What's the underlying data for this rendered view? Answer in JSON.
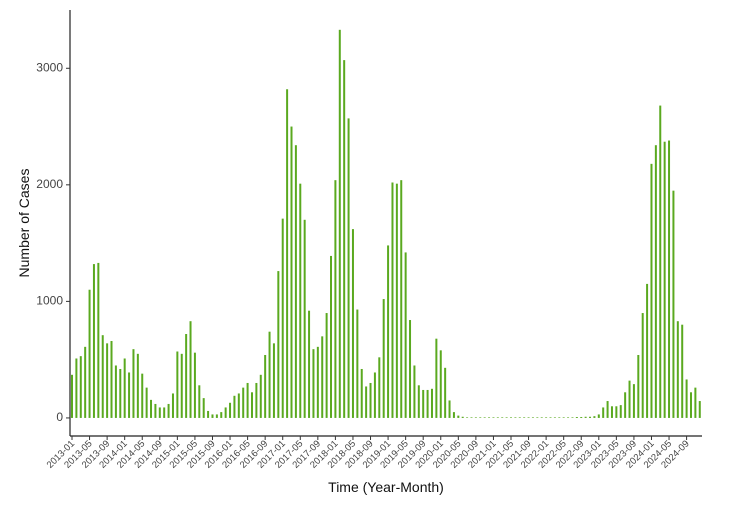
{
  "chart_data": {
    "type": "bar",
    "x_label": "Time (Year-Month)",
    "y_label": "Number of Cases",
    "color": "#5aa91f",
    "categories": [
      "2013-01",
      null,
      null,
      null,
      "2013-05",
      null,
      null,
      null,
      "2013-09",
      null,
      null,
      null,
      "2014-01",
      null,
      null,
      null,
      "2014-05",
      null,
      null,
      null,
      "2014-09",
      null,
      null,
      null,
      "2015-01",
      null,
      null,
      null,
      "2015-05",
      null,
      null,
      null,
      "2015-09",
      null,
      null,
      null,
      "2016-01",
      null,
      null,
      null,
      "2016-05",
      null,
      null,
      null,
      "2016-09",
      null,
      null,
      null,
      "2017-01",
      null,
      null,
      null,
      "2017-05",
      null,
      null,
      null,
      "2017-09",
      null,
      null,
      null,
      "2018-01",
      null,
      null,
      null,
      "2018-05",
      null,
      null,
      null,
      "2018-09",
      null,
      null,
      null,
      "2019-01",
      null,
      null,
      null,
      "2019-05",
      null,
      null,
      null,
      "2019-09",
      null,
      null,
      null,
      "2020-01",
      null,
      null,
      null,
      "2020-05",
      null,
      null,
      null,
      "2020-09",
      null,
      null,
      null,
      "2021-01",
      null,
      null,
      null,
      "2021-05",
      null,
      null,
      null,
      "2021-09",
      null,
      null,
      null,
      "2022-01",
      null,
      null,
      null,
      "2022-05",
      null,
      null,
      null,
      "2022-09",
      null,
      null,
      null,
      "2023-01",
      null,
      null,
      null,
      "2023-05",
      null,
      null,
      null,
      "2023-09",
      null,
      null,
      null,
      "2024-01",
      null,
      null,
      null,
      "2024-05",
      null,
      null,
      null,
      "2024-09",
      null,
      null,
      null
    ],
    "values": [
      370,
      510,
      530,
      610,
      1100,
      1320,
      1330,
      710,
      640,
      660,
      450,
      420,
      510,
      390,
      590,
      550,
      380,
      260,
      155,
      120,
      90,
      90,
      120,
      210,
      570,
      550,
      720,
      830,
      560,
      280,
      170,
      60,
      30,
      30,
      50,
      90,
      130,
      190,
      210,
      260,
      300,
      220,
      300,
      370,
      540,
      740,
      640,
      1260,
      1710,
      2820,
      2500,
      2340,
      2010,
      1700,
      920,
      590,
      610,
      700,
      900,
      1390,
      2040,
      3330,
      3070,
      2570,
      1620,
      930,
      420,
      270,
      300,
      390,
      520,
      1020,
      1480,
      2020,
      2010,
      2040,
      1420,
      840,
      450,
      280,
      240,
      240,
      250,
      680,
      580,
      430,
      150,
      50,
      20,
      10,
      5,
      5,
      5,
      5,
      5,
      5,
      5,
      5,
      5,
      5,
      5,
      5,
      5,
      5,
      5,
      5,
      5,
      5,
      5,
      5,
      5,
      5,
      5,
      5,
      5,
      8,
      8,
      10,
      10,
      15,
      30,
      90,
      145,
      100,
      100,
      110,
      220,
      320,
      290,
      540,
      900,
      1150,
      2180,
      2340,
      2680,
      2370,
      2380,
      1950,
      830,
      800,
      330,
      220,
      260,
      145
    ],
    "ylim": [
      -155,
      3500
    ],
    "yticks": [
      0,
      1000,
      2000,
      3000
    ]
  }
}
